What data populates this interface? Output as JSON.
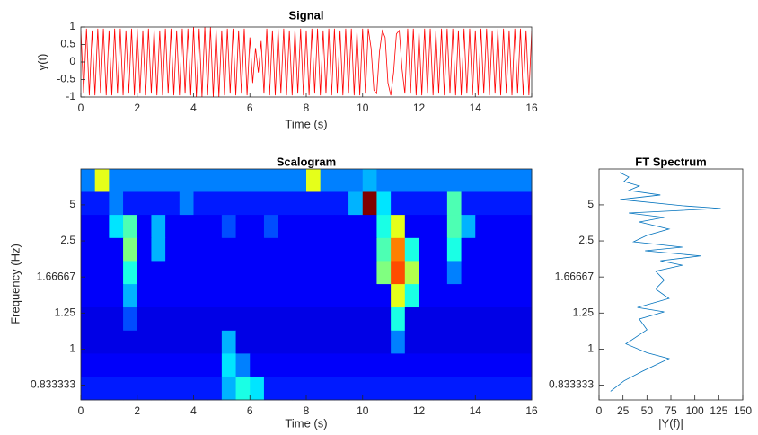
{
  "chart_data": [
    {
      "type": "line",
      "title": "Signal",
      "xlabel": "Time (s)",
      "ylabel": "y(t)",
      "color": "#ff0000",
      "x": [
        0,
        0.1,
        0.2,
        0.3,
        0.4,
        0.5,
        0.6,
        0.7,
        0.8,
        0.9,
        1,
        1.1,
        1.2,
        1.3,
        1.4,
        1.5,
        1.6,
        1.7,
        1.8,
        1.9,
        2,
        2.1,
        2.2,
        2.3,
        2.4,
        2.5,
        2.6,
        2.7,
        2.8,
        2.9,
        3,
        3.1,
        3.2,
        3.3,
        3.4,
        3.5,
        3.6,
        3.7,
        3.8,
        3.9,
        4,
        4.1,
        4.2,
        4.3,
        4.4,
        4.5,
        4.6,
        4.7,
        4.8,
        4.9,
        5,
        5.1,
        5.2,
        5.3,
        5.4,
        5.5,
        5.6,
        5.7,
        5.8,
        5.9,
        6,
        6.1,
        6.2,
        6.3,
        6.4,
        6.5,
        6.6,
        6.7,
        6.8,
        6.9,
        7,
        7.1,
        7.2,
        7.3,
        7.4,
        7.5,
        7.6,
        7.7,
        7.8,
        7.9,
        8,
        8.1,
        8.2,
        8.3,
        8.4,
        8.5,
        8.6,
        8.7,
        8.8,
        8.9,
        9,
        9.1,
        9.2,
        9.3,
        9.4,
        9.5,
        9.6,
        9.7,
        9.8,
        9.9,
        10,
        10.1,
        10.2,
        10.3,
        10.4,
        10.5,
        10.6,
        10.7,
        10.8,
        10.9,
        11,
        11.1,
        11.2,
        11.3,
        11.4,
        11.5,
        11.6,
        11.7,
        11.8,
        11.9,
        12,
        12.1,
        12.2,
        12.3,
        12.4,
        12.5,
        12.6,
        12.7,
        12.8,
        12.9,
        13,
        13.1,
        13.2,
        13.3,
        13.4,
        13.5,
        13.6,
        13.7,
        13.8,
        13.9,
        14,
        14.1,
        14.2,
        14.3,
        14.4,
        14.5,
        14.6,
        14.7,
        14.8,
        14.9,
        15,
        15.1,
        15.2,
        15.3,
        15.4,
        15.5,
        15.6,
        15.7,
        15.8,
        15.9,
        16
      ],
      "values": [
        0.9,
        -0.9,
        0.95,
        -0.95,
        0.9,
        -0.95,
        0.95,
        -0.9,
        0.95,
        -0.95,
        0.9,
        -0.95,
        0.95,
        -0.9,
        0.95,
        -0.95,
        0.9,
        -0.9,
        0.95,
        -0.95,
        0.95,
        -0.9,
        0.9,
        -0.95,
        0.95,
        -0.9,
        0.95,
        -0.95,
        0.9,
        -0.95,
        0.95,
        -0.9,
        0.95,
        -0.95,
        0.9,
        -0.95,
        0.95,
        -0.9,
        0.95,
        -0.95,
        1,
        -1,
        0.95,
        -1,
        1,
        -0.95,
        1,
        -1,
        0.95,
        -1,
        0.9,
        -0.95,
        0.95,
        -0.9,
        0.95,
        -0.95,
        0.9,
        -0.9,
        0.95,
        -0.95,
        0.7,
        -0.6,
        0.4,
        -0.3,
        0.6,
        -0.9,
        0.95,
        -0.95,
        0.9,
        -0.95,
        0.95,
        -0.9,
        0.95,
        -0.95,
        0.9,
        -0.95,
        0.95,
        -0.9,
        0.95,
        -0.95,
        0.9,
        -0.95,
        0.95,
        -0.9,
        0.95,
        -0.95,
        0.9,
        -0.9,
        0.95,
        -0.95,
        0.95,
        -0.9,
        0.9,
        -0.95,
        0.95,
        -0.9,
        0.95,
        -0.95,
        0.9,
        -0.95,
        0.95,
        -0.9,
        0.95,
        0.4,
        -0.8,
        -0.9,
        0.3,
        0.9,
        0.7,
        -0.6,
        -0.95,
        -0.3,
        0.8,
        0.9,
        -0.2,
        -0.9,
        0.95,
        -0.9,
        0.95,
        -0.95,
        0.9,
        -0.95,
        0.95,
        -0.9,
        0.95,
        -0.95,
        0.9,
        -0.9,
        0.95,
        -0.95,
        0.95,
        -0.9,
        0.95,
        -0.95,
        0.9,
        -0.95,
        0.95,
        -0.9,
        0.95,
        -0.95,
        0.9,
        -0.95,
        0.95,
        -0.9,
        0.95,
        -0.95,
        0.9,
        -0.9,
        0.95,
        -0.95,
        0.95,
        -0.9,
        0.9,
        -0.95,
        0.95,
        -0.9,
        0.95,
        -0.95,
        0.9,
        -0.95,
        0.9
      ],
      "xlim": [
        0,
        16
      ],
      "xticks": [
        0,
        2,
        4,
        6,
        8,
        10,
        12,
        14,
        16
      ],
      "ylim": [
        -1,
        1
      ],
      "yticks": [
        -1,
        -0.5,
        0,
        0.5,
        1
      ]
    },
    {
      "type": "heatmap",
      "title": "Scalogram",
      "xlabel": "Time (s)",
      "ylabel": "Frequency (Hz)",
      "colormap": "jet",
      "yscale": "reciprocal",
      "x": [
        0.25,
        0.75,
        1.25,
        1.75,
        2.25,
        2.75,
        3.25,
        3.75,
        4.25,
        4.75,
        5.25,
        5.75,
        6.25,
        6.75,
        7.25,
        7.75,
        8.25,
        8.75,
        9.25,
        9.75,
        10.25,
        10.75,
        11.25,
        11.75,
        12.25,
        12.75,
        13.25,
        13.75,
        14.25,
        14.75,
        15.25,
        15.75
      ],
      "y": [
        15.6,
        5.21,
        3.13,
        2.23,
        1.74,
        1.42,
        1.2,
        1.04,
        0.919,
        0.822
      ],
      "z": [
        [
          0.25,
          0.6,
          0.25,
          0.25,
          0.25,
          0.25,
          0.25,
          0.25,
          0.25,
          0.25,
          0.25,
          0.25,
          0.25,
          0.25,
          0.25,
          0.25,
          0.6,
          0.25,
          0.25,
          0.25,
          0.3,
          0.25,
          0.25,
          0.25,
          0.25,
          0.25,
          0.25,
          0.25,
          0.25,
          0.25,
          0.25,
          0.25
        ],
        [
          0.15,
          0.15,
          0.25,
          0.15,
          0.15,
          0.15,
          0.15,
          0.25,
          0.15,
          0.15,
          0.15,
          0.15,
          0.15,
          0.15,
          0.15,
          0.15,
          0.15,
          0.15,
          0.15,
          0.3,
          1,
          0.35,
          0.15,
          0.15,
          0.15,
          0.15,
          0.45,
          0.15,
          0.15,
          0.15,
          0.15,
          0.15
        ],
        [
          0.12,
          0.12,
          0.35,
          0.45,
          0.12,
          0.3,
          0.12,
          0.12,
          0.12,
          0.12,
          0.2,
          0.12,
          0.12,
          0.2,
          0.12,
          0.12,
          0.12,
          0.12,
          0.12,
          0.12,
          0.12,
          0.4,
          0.6,
          0.12,
          0.12,
          0.12,
          0.45,
          0.3,
          0.12,
          0.12,
          0.12,
          0.12
        ],
        [
          0.12,
          0.12,
          0.12,
          0.5,
          0.12,
          0.3,
          0.12,
          0.12,
          0.12,
          0.12,
          0.12,
          0.12,
          0.12,
          0.12,
          0.12,
          0.12,
          0.12,
          0.12,
          0.12,
          0.12,
          0.12,
          0.45,
          0.75,
          0.4,
          0.12,
          0.12,
          0.4,
          0.12,
          0.12,
          0.12,
          0.12,
          0.12
        ],
        [
          0.12,
          0.12,
          0.12,
          0.4,
          0.12,
          0.12,
          0.12,
          0.12,
          0.12,
          0.12,
          0.12,
          0.12,
          0.12,
          0.12,
          0.12,
          0.12,
          0.12,
          0.12,
          0.12,
          0.12,
          0.12,
          0.5,
          0.8,
          0.55,
          0.12,
          0.12,
          0.25,
          0.12,
          0.12,
          0.12,
          0.12,
          0.12
        ],
        [
          0.12,
          0.12,
          0.12,
          0.3,
          0.12,
          0.12,
          0.12,
          0.12,
          0.12,
          0.12,
          0.12,
          0.12,
          0.12,
          0.12,
          0.12,
          0.12,
          0.12,
          0.12,
          0.12,
          0.12,
          0.12,
          0.12,
          0.6,
          0.4,
          0.12,
          0.12,
          0.12,
          0.12,
          0.12,
          0.12,
          0.12,
          0.12
        ],
        [
          0.1,
          0.1,
          0.1,
          0.2,
          0.1,
          0.1,
          0.1,
          0.1,
          0.1,
          0.1,
          0.1,
          0.1,
          0.1,
          0.1,
          0.1,
          0.1,
          0.1,
          0.1,
          0.1,
          0.1,
          0.1,
          0.1,
          0.4,
          0.1,
          0.1,
          0.1,
          0.1,
          0.1,
          0.1,
          0.1,
          0.1,
          0.1
        ],
        [
          0.1,
          0.1,
          0.1,
          0.1,
          0.1,
          0.1,
          0.1,
          0.1,
          0.1,
          0.1,
          0.3,
          0.1,
          0.1,
          0.1,
          0.1,
          0.1,
          0.1,
          0.1,
          0.1,
          0.1,
          0.1,
          0.1,
          0.25,
          0.1,
          0.1,
          0.1,
          0.1,
          0.1,
          0.1,
          0.1,
          0.1,
          0.1
        ],
        [
          0.12,
          0.12,
          0.12,
          0.12,
          0.12,
          0.12,
          0.12,
          0.12,
          0.12,
          0.12,
          0.35,
          0.25,
          0.12,
          0.12,
          0.12,
          0.12,
          0.12,
          0.12,
          0.12,
          0.12,
          0.12,
          0.12,
          0.12,
          0.12,
          0.12,
          0.12,
          0.12,
          0.12,
          0.12,
          0.12,
          0.12,
          0.12
        ],
        [
          0.15,
          0.15,
          0.15,
          0.15,
          0.15,
          0.15,
          0.15,
          0.15,
          0.15,
          0.15,
          0.3,
          0.4,
          0.35,
          0.15,
          0.15,
          0.15,
          0.15,
          0.15,
          0.15,
          0.15,
          0.15,
          0.15,
          0.15,
          0.15,
          0.15,
          0.15,
          0.15,
          0.15,
          0.15,
          0.15,
          0.15,
          0.15
        ]
      ],
      "xlim": [
        0,
        16
      ],
      "xticks": [
        0,
        2,
        4,
        6,
        8,
        10,
        12,
        14,
        16
      ],
      "ylim": [
        0.78,
        1000
      ],
      "yticks": [
        5,
        2.5,
        1.66667,
        1.25,
        1,
        0.833333
      ]
    },
    {
      "type": "line",
      "title": "FT Spectrum",
      "xlabel": "|Y(f)|",
      "color": "#0072bd",
      "yscale": "reciprocal",
      "x": [
        21.6,
        31,
        26,
        42,
        31,
        64,
        22,
        87,
        127,
        31,
        68,
        42,
        73,
        50,
        36,
        87,
        48,
        106,
        64,
        87,
        59,
        68,
        59,
        73,
        40,
        68,
        42,
        50,
        28,
        50,
        73,
        45,
        26,
        12
      ],
      "values": [
        48.8,
        22,
        14.2,
        10.5,
        8.32,
        6.89,
        5.88,
        4.88,
        4.55,
        4.08,
        3.71,
        3.39,
        2.99,
        2.71,
        2.47,
        2.3,
        2.2,
        2.07,
        1.96,
        1.87,
        1.76,
        1.62,
        1.5,
        1.39,
        1.3,
        1.26,
        1.2,
        1.12,
        1.03,
        0.98,
        0.95,
        0.89,
        0.85,
        0.81
      ],
      "xlim": [
        0,
        150
      ],
      "xticks": [
        0,
        25,
        50,
        75,
        100,
        125,
        150
      ],
      "ylim": [
        0.78,
        1000
      ],
      "yticks": [
        5,
        2.5,
        1.66667,
        1.25,
        1,
        0.833333
      ]
    }
  ]
}
